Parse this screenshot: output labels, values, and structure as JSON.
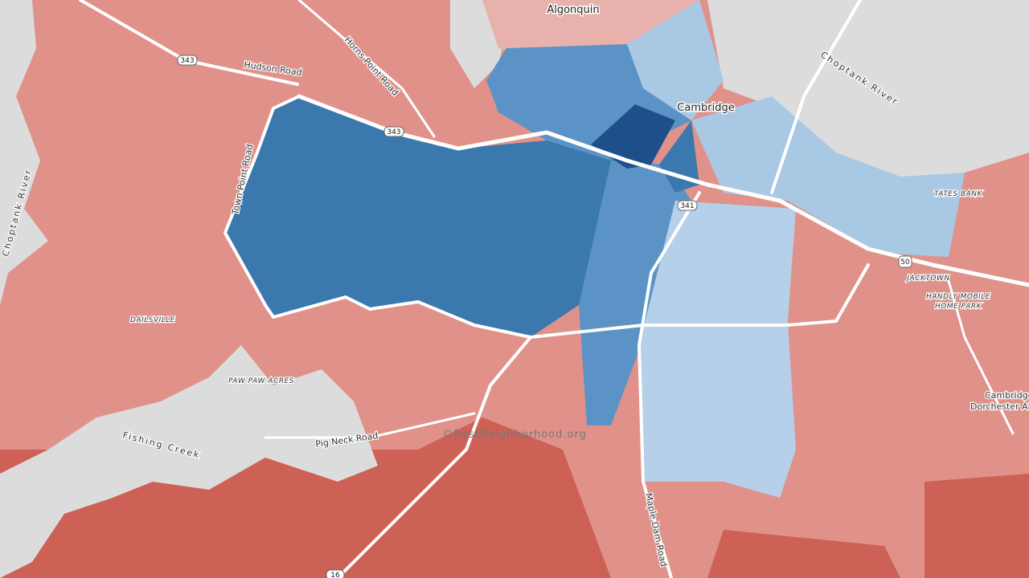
{
  "places": {
    "algonquin": "Algonquin",
    "cambridge": "Cambridge",
    "choptank_river_east": "Choptank River",
    "choptank_river_west": "Choptank River",
    "tates_bank": "TATES BANK",
    "jacktown": "JACKTOWN",
    "handly": "HANDLY MOBILE",
    "handly_2": "HOME PARK",
    "dailsville": "DAILSVILLE",
    "paw_paw_acres": "PAW PAW ACRES",
    "fishing_creek": "Fishing Creek",
    "airport": "Cambridge-",
    "airport_2": "Dorchester Airport"
  },
  "roads": {
    "hudson": "Hudson Road",
    "horns_point": "Horns Point Road",
    "town_point": "Town Point Road",
    "pig_neck": "Pig Neck Road",
    "maple_dam": "Maple Dam Road"
  },
  "shields": [
    "343",
    "343",
    "341",
    "50",
    "16"
  ],
  "watermark": "©BestNeighborhood.org"
}
